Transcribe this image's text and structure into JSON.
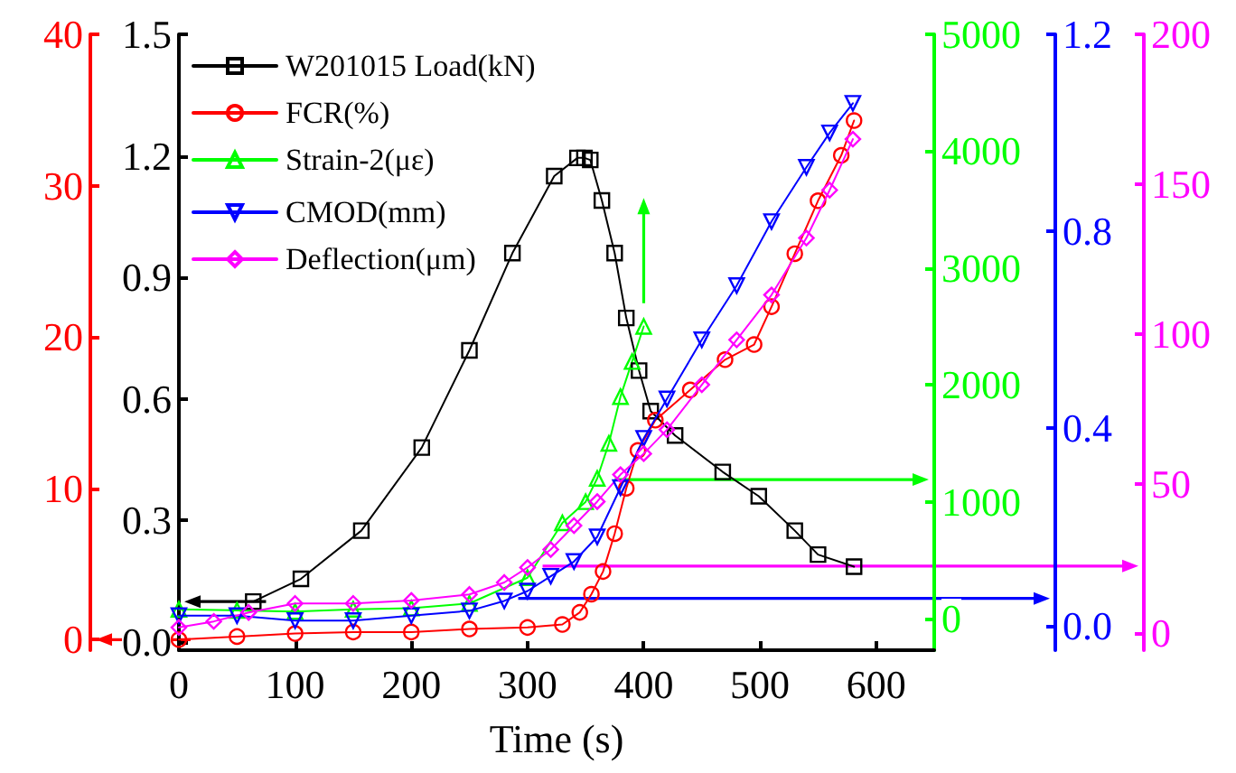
{
  "chart_data": [
    {
      "type": "line",
      "xlabel": "Time (s)",
      "xlim": [
        0,
        650
      ],
      "xticks": [
        0,
        100,
        200,
        300,
        400,
        500,
        600
      ],
      "ylim": [
        -0.02,
        1.5
      ],
      "yticks": [
        {
          "value": 0,
          "label": "0.0"
        },
        0.3,
        0.6,
        0.9,
        1.2,
        1.5
      ],
      "y2lim": [
        -0.7,
        40
      ],
      "y2ticks": [
        0,
        10,
        20,
        30,
        40
      ],
      "y3lim": [
        -270,
        5000
      ],
      "y3ticks": [
        0,
        1000,
        2000,
        3000,
        4000,
        5000
      ],
      "grid": false,
      "legend": "top left",
      "line_style": "solid",
      "series": [
        {
          "name": "W201015 Load(kN)",
          "color": "#000000",
          "marker": "square",
          "x": [
            64,
            105,
            157,
            209,
            250,
            287,
            323,
            343,
            349,
            354,
            364,
            375,
            385,
            396,
            406,
            427,
            468,
            499,
            530,
            550,
            581
          ],
          "values": [
            0.1,
            0.156,
            0.275,
            0.48,
            0.72,
            0.96,
            1.15,
            1.195,
            1.195,
            1.19,
            1.09,
            0.96,
            0.8,
            0.67,
            0.57,
            0.51,
            0.42,
            0.36,
            0.275,
            0.216,
            0.186
          ]
        },
        {
          "name": "FCR(%)",
          "color": "#ff0000",
          "marker": "circle",
          "axis": "y2",
          "x": [
            0,
            50,
            100,
            150,
            200,
            250,
            300,
            330,
            345,
            355,
            365,
            375,
            385,
            395,
            410,
            440,
            470,
            495,
            510,
            530,
            550,
            570,
            581
          ],
          "values": [
            0,
            0.2,
            0.4,
            0.5,
            0.5,
            0.7,
            0.8,
            1,
            1.8,
            3,
            4.5,
            7,
            10,
            12.5,
            14.5,
            16.5,
            18.5,
            19.5,
            22,
            25.5,
            29,
            32,
            34.3
          ]
        },
        {
          "name": "Strain-2(με)",
          "color": "#00ff00",
          "marker": "triangle",
          "axis": "y3",
          "x": [
            0,
            50,
            100,
            150,
            200,
            250,
            300,
            330,
            350,
            360,
            370,
            380,
            390,
            400
          ],
          "values": [
            80,
            70,
            60,
            80,
            90,
            130,
            350,
            820,
            1000,
            1200,
            1500,
            1900,
            2200,
            2500
          ]
        }
      ]
    },
    {
      "type": "line",
      "xlim": [
        0,
        650
      ],
      "tick_labels": "y",
      "ylim": [
        -0.05,
        1.2
      ],
      "yticks": [
        {
          "value": 0,
          "label": "0.0"
        },
        0.4,
        0.8,
        1.2
      ],
      "y2lim": [
        -5.6,
        200
      ],
      "y2ticks": [
        0,
        50,
        100,
        150,
        200
      ],
      "grid": false,
      "legend": "top left",
      "line_style": "solid",
      "series": [
        {
          "name": "CMOD(mm)",
          "color": "#0000ff",
          "marker": "triangle_down",
          "x": [
            0,
            50,
            100,
            150,
            200,
            250,
            280,
            300,
            320,
            340,
            360,
            380,
            400,
            420,
            450,
            480,
            510,
            540,
            560,
            580
          ],
          "values": [
            0.02,
            0.02,
            0.01,
            0.01,
            0.02,
            0.03,
            0.05,
            0.07,
            0.1,
            0.13,
            0.18,
            0.28,
            0.38,
            0.46,
            0.58,
            0.69,
            0.82,
            0.93,
            1.0,
            1.06
          ]
        },
        {
          "name": "Deflection(μm)",
          "color": "#ff00ff",
          "marker": "diamond",
          "axis": "y2",
          "x": [
            0,
            30,
            60,
            100,
            150,
            200,
            250,
            280,
            300,
            320,
            340,
            360,
            380,
            400,
            420,
            450,
            480,
            510,
            540,
            560,
            580
          ],
          "values": [
            2,
            4,
            7,
            10,
            10,
            11,
            13,
            17,
            22,
            28,
            36,
            44,
            53,
            60,
            68,
            83,
            98,
            113,
            132,
            148,
            165
          ]
        }
      ]
    }
  ]
}
